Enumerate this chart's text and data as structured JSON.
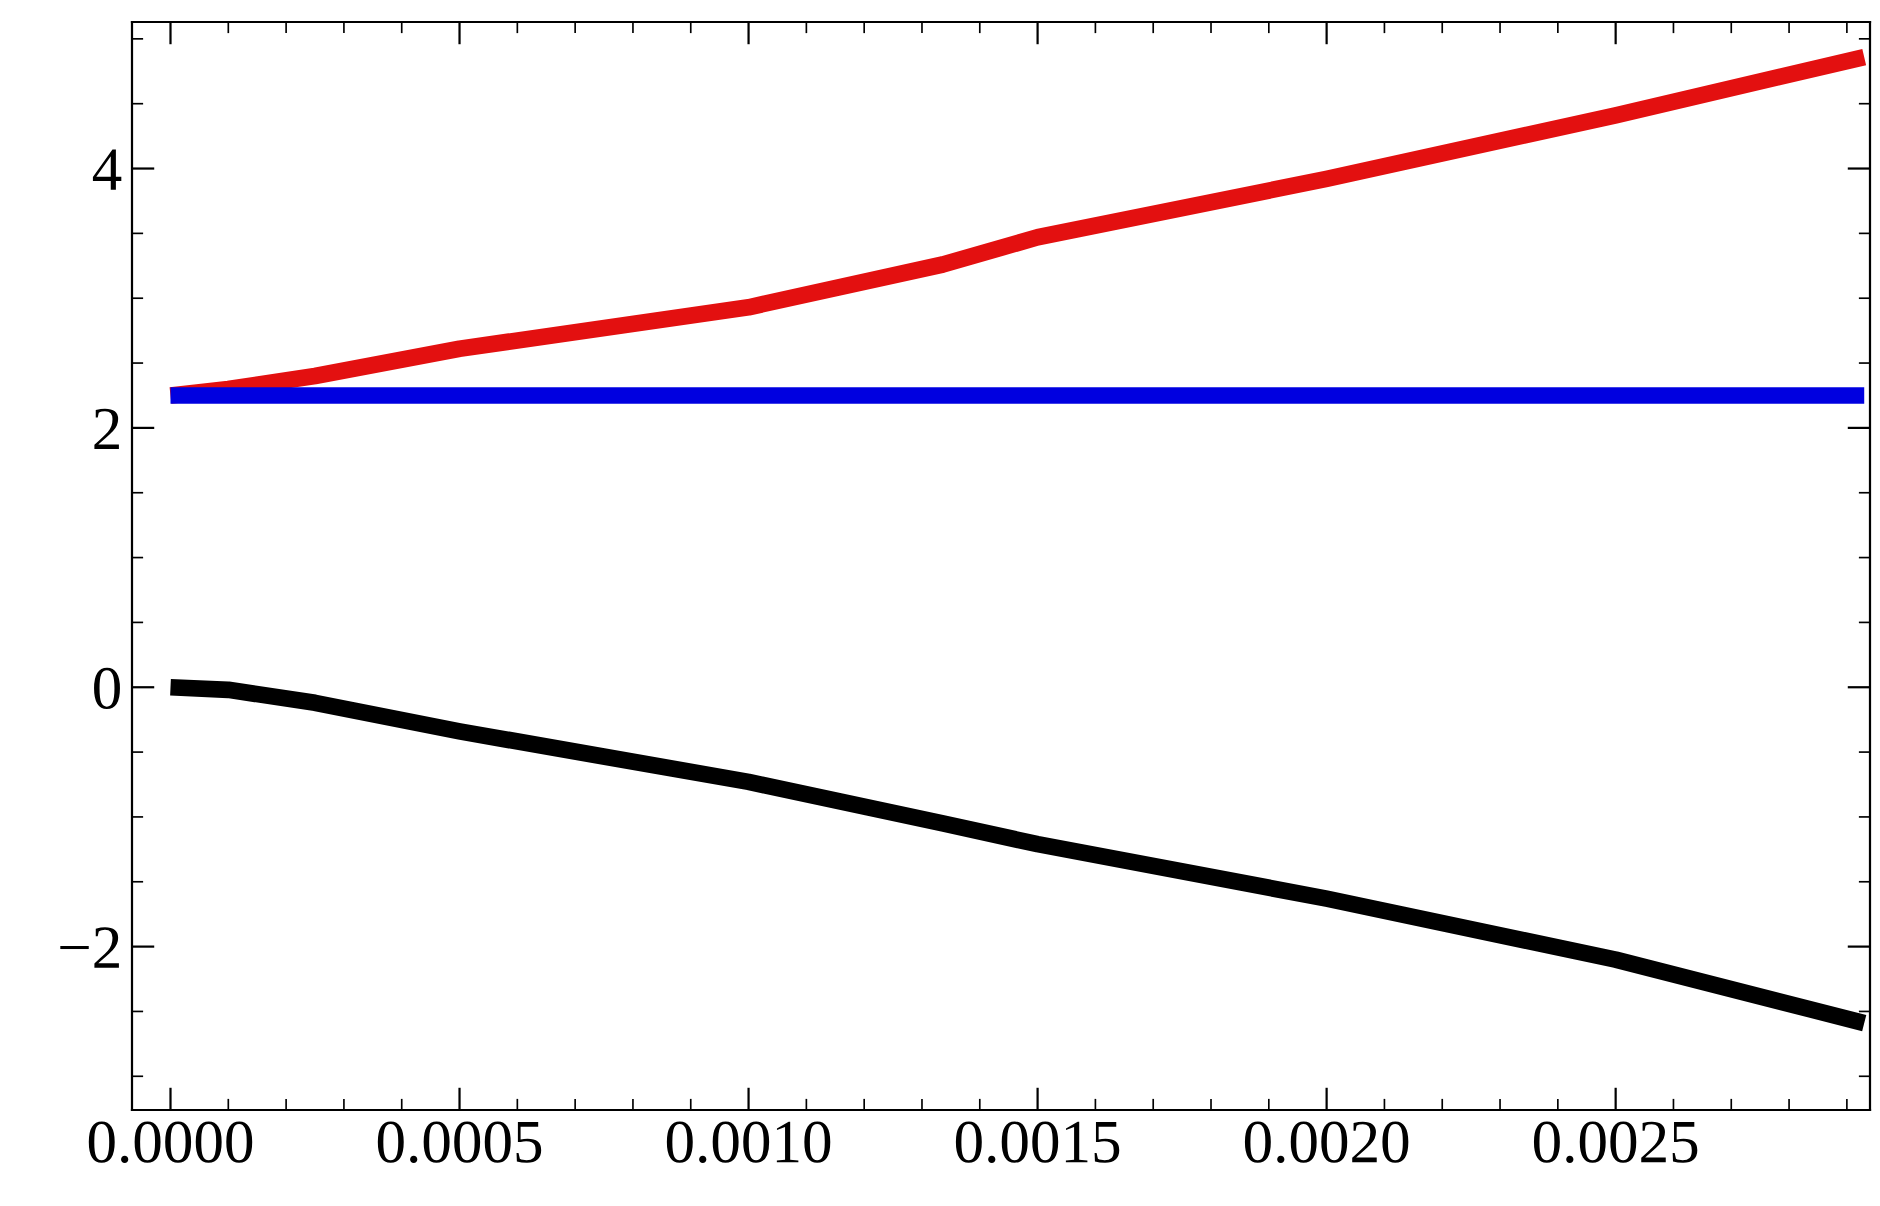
{
  "chart_data": {
    "type": "line",
    "x": [
      0,
      0.0001,
      0.00025,
      0.0005,
      0.001,
      0.001336,
      0.0015,
      0.002,
      0.0025,
      0.00293
    ],
    "series": [
      {
        "color": "#e31010",
        "values": [
          2.25,
          2.3,
          2.4,
          2.61,
          2.93,
          3.26,
          3.47,
          3.92,
          4.41,
          4.86
        ]
      },
      {
        "color": "#0000e0",
        "x": [
          0,
          0.00293
        ],
        "values": [
          2.25,
          2.25
        ]
      },
      {
        "color": "#000000",
        "values": [
          0,
          -0.02,
          -0.12,
          -0.34,
          -0.73,
          -1.05,
          -1.21,
          -1.63,
          -2.1,
          -2.59
        ]
      }
    ],
    "xlim": [
      -6.66e-05,
      0.00294
    ],
    "ylim": [
      -3.26,
      5.13
    ],
    "xticks": [
      {
        "value": 0,
        "label": "0.0000"
      },
      {
        "value": 0.0005,
        "label": "0.0005"
      },
      {
        "value": 0.001,
        "label": "0.0010"
      },
      {
        "value": 0.0015,
        "label": "0.0015"
      },
      {
        "value": 0.002,
        "label": "0.0020"
      },
      {
        "value": 0.0025,
        "label": "0.0025"
      }
    ],
    "yticks": [
      {
        "value": -2,
        "label": "−2"
      },
      0,
      2,
      4
    ],
    "grid": false,
    "marker": "none",
    "line_style": "solid"
  }
}
